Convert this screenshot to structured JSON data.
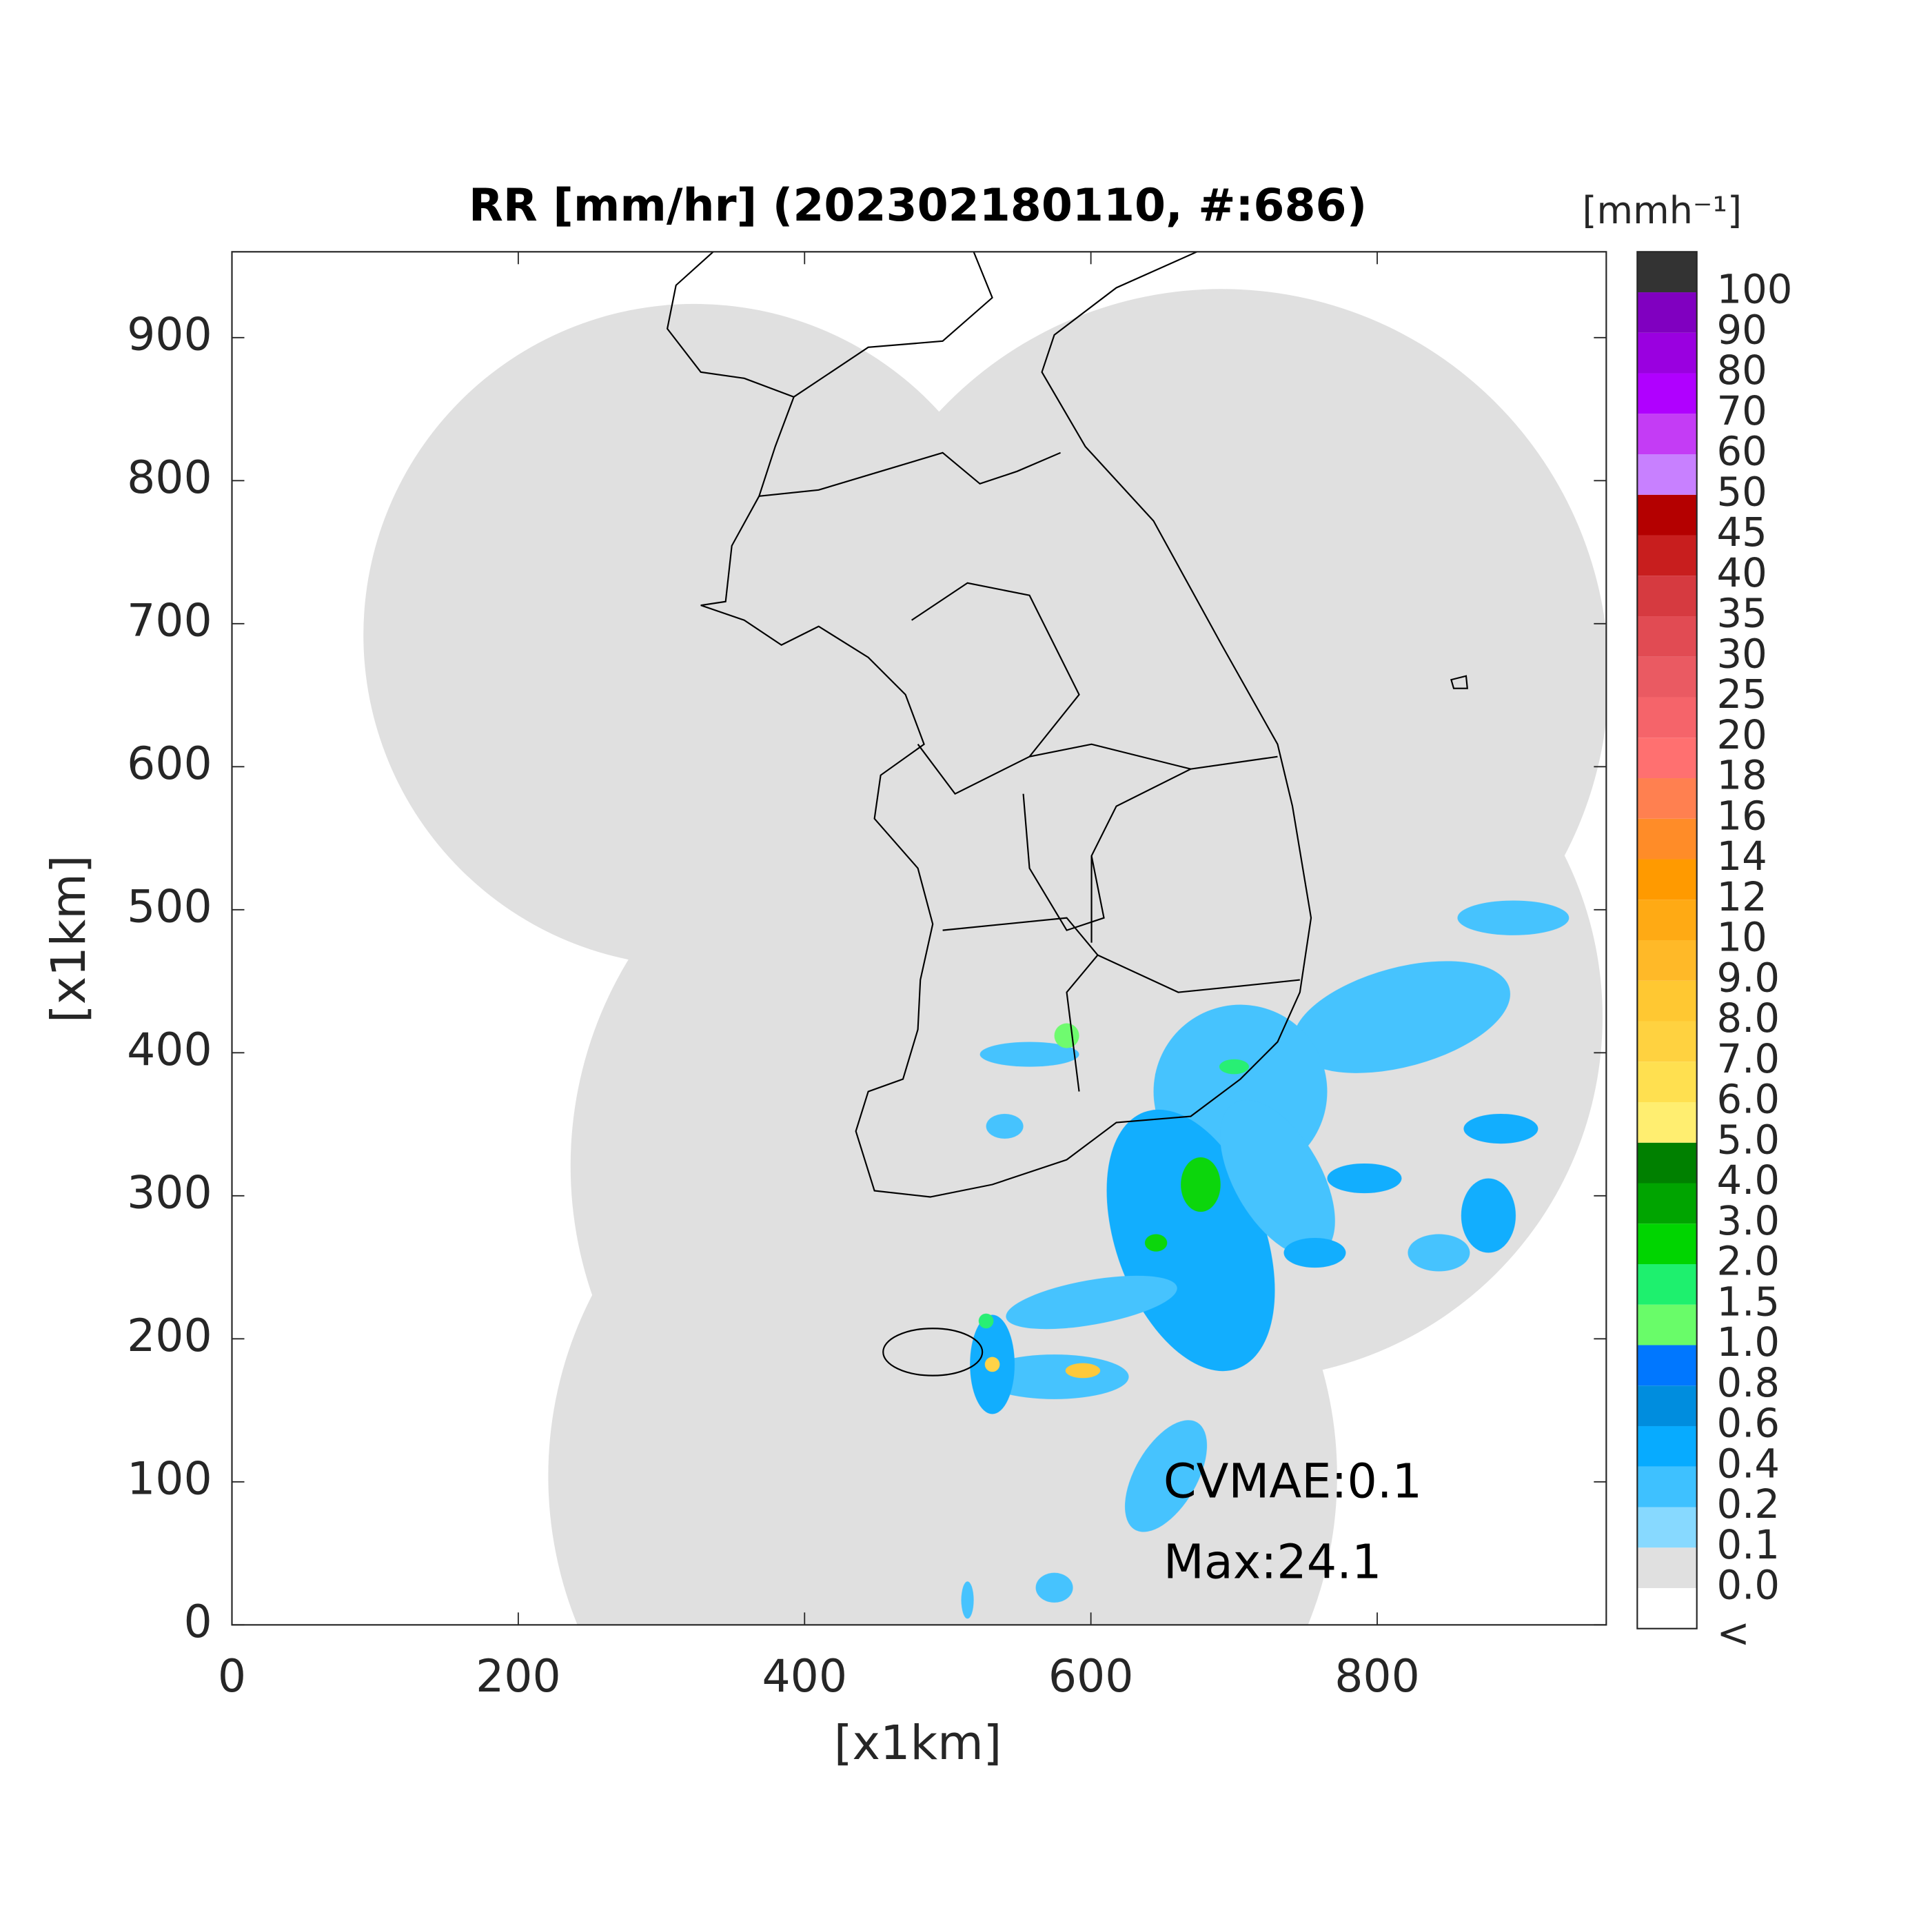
{
  "chart_data": {
    "type": "radar-map",
    "title": "RR [mm/hr] (202302180110, #:686)",
    "xlabel": "[x1km]",
    "ylabel": "[x1km]",
    "xlim": [
      0,
      960
    ],
    "ylim": [
      0,
      960
    ],
    "xticks": [
      0,
      200,
      400,
      600,
      800
    ],
    "yticks": [
      0,
      100,
      200,
      300,
      400,
      500,
      600,
      700,
      800,
      900
    ],
    "annotations": [
      "CVMAE:0.1",
      "Max:24.1"
    ],
    "colorbar": {
      "unit": "[mmh⁻¹]",
      "labels": [
        "<",
        "0.0",
        "0.1",
        "0.2",
        "0.4",
        "0.6",
        "0.8",
        "1.0",
        "1.5",
        "2.0",
        "3.0",
        "4.0",
        "5.0",
        "6.0",
        "7.0",
        "8.0",
        "9.0",
        "10",
        "12",
        "14",
        "16",
        "18",
        "20",
        "25",
        "30",
        "35",
        "40",
        "45",
        "50",
        "60",
        "70",
        "80",
        "90",
        "100"
      ],
      "colors": [
        "#ffffff",
        "#e0e0e0",
        "#87d9ff",
        "#3ec1ff",
        "#07abff",
        "#008dde",
        "#0077ff",
        "#69fc69",
        "#1ef06e",
        "#00d500",
        "#00a400",
        "#008000",
        "#ffee70",
        "#ffe050",
        "#ffd240",
        "#ffc832",
        "#ffb928",
        "#ffaa14",
        "#ff9a00",
        "#ff8c28",
        "#ff8050",
        "#ff7070",
        "#f5646a",
        "#ea5a62",
        "#e14b53",
        "#d63a40",
        "#c81e1e",
        "#b40000",
        "#c880ff",
        "#c43cf5",
        "#b000ff",
        "#9a00e0",
        "#8000c0",
        "#333333"
      ]
    }
  }
}
